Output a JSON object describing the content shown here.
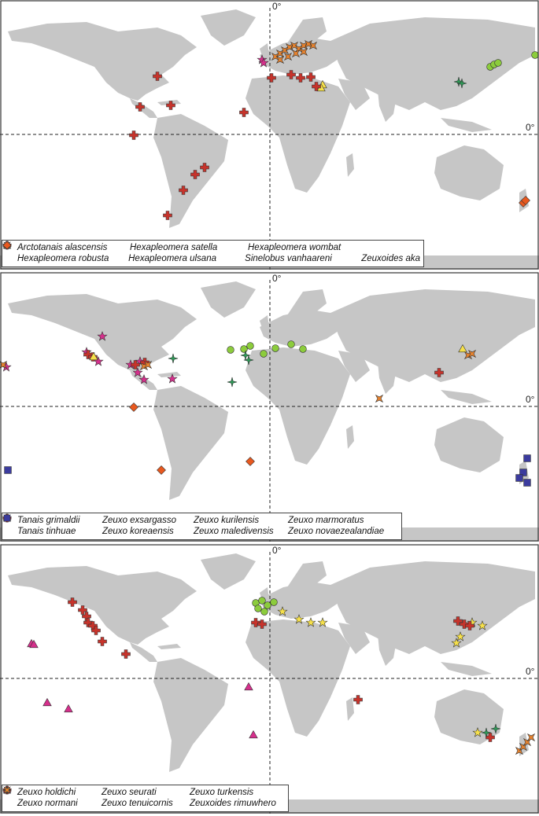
{
  "equator_label": "0°",
  "meridian_label": "0°",
  "panels": [
    {
      "legend": [
        {
          "name": "Arctotanais alascensis",
          "shape": "circle",
          "color": "#8ccc3c"
        },
        {
          "name": "Hexapleomera satella",
          "shape": "triangle",
          "color": "#f6e04a"
        },
        {
          "name": "Hexapleomera wombat",
          "shape": "star",
          "color": "#d62f8c"
        },
        {
          "name": "Hexapleomera robusta",
          "shape": "plus",
          "color": "#c8332b"
        },
        {
          "name": "Hexapleomera ulsana",
          "shape": "star4",
          "color": "#2e9a57"
        },
        {
          "name": "Sinelobus vanhaareni",
          "shape": "cross",
          "color": "#e6822e"
        },
        {
          "name": "Zeuxoides aka",
          "shape": "diamond",
          "color": "#e8591f"
        }
      ]
    },
    {
      "legend": [
        {
          "name": "Tanais grimaldii",
          "shape": "circle",
          "color": "#8ccc3c"
        },
        {
          "name": "Zeuxo exsargasso",
          "shape": "star4",
          "color": "#2e9a57"
        },
        {
          "name": "Zeuxo kurilensis",
          "shape": "star",
          "color": "#d62f8c"
        },
        {
          "name": "Zeuxo marmoratus",
          "shape": "diamond",
          "color": "#e8591f"
        },
        {
          "name": "Tanais tinhuae",
          "shape": "plus",
          "color": "#c8332b"
        },
        {
          "name": "Zeuxo koreaensis",
          "shape": "triangle",
          "color": "#f6e04a"
        },
        {
          "name": "Zeuxo maledivensis",
          "shape": "cross",
          "color": "#e6822e"
        },
        {
          "name": "Zeuxo novaezealandiae",
          "shape": "square",
          "color": "#3b3b9e"
        }
      ]
    },
    {
      "legend": [
        {
          "name": "Zeuxo holdichi",
          "shape": "circle",
          "color": "#8ccc3c"
        },
        {
          "name": "Zeuxo seurati",
          "shape": "triangle",
          "color": "#d62f8c"
        },
        {
          "name": "Zeuxo turkensis",
          "shape": "star",
          "color": "#f6e04a"
        },
        {
          "name": "Zeuxo normani",
          "shape": "plus",
          "color": "#c8332b"
        },
        {
          "name": "Zeuxo tenuicornis",
          "shape": "star4",
          "color": "#2e9a57"
        },
        {
          "name": "Zeuxoides rimuwhero",
          "shape": "cross",
          "color": "#e6822e"
        }
      ]
    }
  ]
}
